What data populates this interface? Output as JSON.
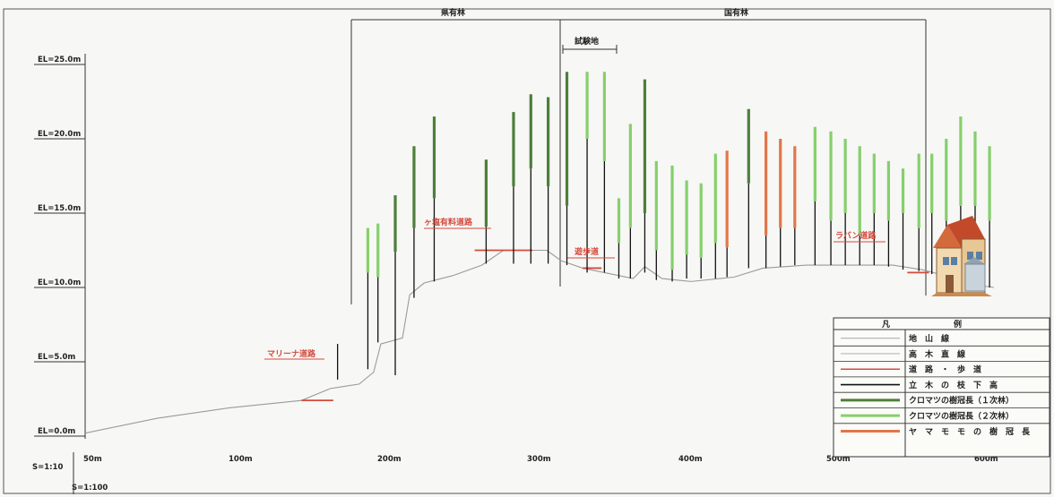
{
  "page": {
    "background": "#f7f7f5",
    "frame_color": "#555555"
  },
  "chart_data": {
    "type": "cross-section",
    "y_axis": {
      "ticks": [
        "EL=25.0m",
        "EL=20.0m",
        "EL=15.0m",
        "EL=10.0m",
        "EL=5.0m",
        "EL=0.0m"
      ],
      "ylim": [
        0,
        25
      ]
    },
    "x_axis": {
      "ticks": [
        "50m",
        "100m",
        "200m",
        "300m",
        "400m",
        "500m",
        "600m"
      ],
      "xlim": [
        0,
        640
      ]
    },
    "scale_labels": [
      "S=1:10",
      "S=1:100"
    ],
    "regions": [
      {
        "label": "県有林"
      },
      {
        "label": "国有林"
      },
      {
        "label": "試験地"
      }
    ],
    "road_labels": [
      "マリーナ道路",
      "ヶ塩有料道路",
      "遊歩道",
      "ラバン道路"
    ],
    "terrain": [
      [
        0,
        0.2
      ],
      [
        50,
        1.2
      ],
      [
        100,
        1.9
      ],
      [
        150,
        2.4
      ],
      [
        170,
        3.2
      ],
      [
        190,
        3.5
      ],
      [
        200,
        4.3
      ],
      [
        205,
        6.2
      ],
      [
        220,
        6.6
      ],
      [
        225,
        9.5
      ],
      [
        235,
        10.3
      ],
      [
        255,
        10.8
      ],
      [
        275,
        11.5
      ],
      [
        290,
        12.5
      ],
      [
        320,
        12.5
      ],
      [
        330,
        11.8
      ],
      [
        345,
        11.3
      ],
      [
        360,
        11.0
      ],
      [
        380,
        10.6
      ],
      [
        388,
        11.4
      ],
      [
        400,
        10.6
      ],
      [
        420,
        10.4
      ],
      [
        440,
        10.6
      ],
      [
        450,
        10.7
      ],
      [
        470,
        11.3
      ],
      [
        500,
        11.5
      ],
      [
        530,
        11.5
      ],
      [
        545,
        11.5
      ],
      [
        560,
        11.5
      ],
      [
        580,
        11.2
      ],
      [
        600,
        10.7
      ],
      [
        615,
        10.2
      ],
      [
        630,
        10.0
      ]
    ],
    "roads": [
      [
        150,
        2.4,
        172,
        2.4
      ],
      [
        270,
        12.5,
        310,
        12.5
      ],
      [
        345,
        11.3,
        358,
        11.3
      ],
      [
        570,
        11.0,
        585,
        11.0
      ]
    ],
    "trees": [
      {
        "x": 175,
        "base": 3.8,
        "top": 6.2,
        "crown": "green2",
        "crown_h": 0.0
      },
      {
        "x": 196,
        "base": 4.5,
        "top": 14.0,
        "crown": "green2",
        "crown_h": 3.0
      },
      {
        "x": 203,
        "base": 6.3,
        "top": 14.3,
        "crown": "green2",
        "crown_h": 3.6
      },
      {
        "x": 215,
        "base": 4.1,
        "top": 16.2,
        "crown": "green1",
        "crown_h": 3.8
      },
      {
        "x": 228,
        "base": 9.3,
        "top": 19.5,
        "crown": "green1",
        "crown_h": 5.5
      },
      {
        "x": 242,
        "base": 10.4,
        "top": 21.5,
        "crown": "green1",
        "crown_h": 5.5
      },
      {
        "x": 278,
        "base": 11.6,
        "top": 18.6,
        "crown": "green1",
        "crown_h": 4.5
      },
      {
        "x": 297,
        "base": 11.6,
        "top": 21.8,
        "crown": "green1",
        "crown_h": 5.0
      },
      {
        "x": 309,
        "base": 11.6,
        "top": 23.0,
        "crown": "green1",
        "crown_h": 5.0
      },
      {
        "x": 321,
        "base": 11.6,
        "top": 22.8,
        "crown": "green1",
        "crown_h": 6.0
      },
      {
        "x": 334,
        "base": 11.5,
        "top": 24.5,
        "crown": "green1",
        "crown_h": 9.0
      },
      {
        "x": 348,
        "base": 11.0,
        "top": 24.5,
        "crown": "green2",
        "crown_h": 4.5
      },
      {
        "x": 360,
        "base": 11.0,
        "top": 24.5,
        "crown": "green2",
        "crown_h": 6.0
      },
      {
        "x": 370,
        "base": 10.6,
        "top": 16.0,
        "crown": "green2",
        "crown_h": 3.0
      },
      {
        "x": 378,
        "base": 10.6,
        "top": 21.0,
        "crown": "green2",
        "crown_h": 7.0
      },
      {
        "x": 388,
        "base": 11.0,
        "top": 24.0,
        "crown": "green1",
        "crown_h": 9.0
      },
      {
        "x": 396,
        "base": 10.5,
        "top": 18.5,
        "crown": "green2",
        "crown_h": 6.0
      },
      {
        "x": 407,
        "base": 10.4,
        "top": 18.2,
        "crown": "green2",
        "crown_h": 7.0
      },
      {
        "x": 417,
        "base": 10.6,
        "top": 17.2,
        "crown": "green2",
        "crown_h": 5.0
      },
      {
        "x": 427,
        "base": 10.6,
        "top": 17.0,
        "crown": "green2",
        "crown_h": 5.0
      },
      {
        "x": 437,
        "base": 10.6,
        "top": 19.0,
        "crown": "green2",
        "crown_h": 6.0
      },
      {
        "x": 445,
        "base": 10.7,
        "top": 19.2,
        "crown": "orange",
        "crown_h": 6.5
      },
      {
        "x": 460,
        "base": 11.3,
        "top": 22.0,
        "crown": "green1",
        "crown_h": 5.0
      },
      {
        "x": 472,
        "base": 11.3,
        "top": 20.5,
        "crown": "orange",
        "crown_h": 7.0
      },
      {
        "x": 482,
        "base": 11.4,
        "top": 20.0,
        "crown": "orange",
        "crown_h": 6.0
      },
      {
        "x": 492,
        "base": 11.5,
        "top": 19.5,
        "crown": "orange",
        "crown_h": 5.5
      },
      {
        "x": 506,
        "base": 11.5,
        "top": 20.8,
        "crown": "green2",
        "crown_h": 5.0
      },
      {
        "x": 517,
        "base": 11.5,
        "top": 20.5,
        "crown": "green2",
        "crown_h": 6.0
      },
      {
        "x": 527,
        "base": 11.5,
        "top": 20.0,
        "crown": "green2",
        "crown_h": 5.0
      },
      {
        "x": 537,
        "base": 11.5,
        "top": 19.5,
        "crown": "green2",
        "crown_h": 6.0
      },
      {
        "x": 547,
        "base": 11.5,
        "top": 19.0,
        "crown": "green2",
        "crown_h": 4.0
      },
      {
        "x": 557,
        "base": 11.4,
        "top": 18.5,
        "crown": "green2",
        "crown_h": 4.0
      },
      {
        "x": 567,
        "base": 11.2,
        "top": 18.0,
        "crown": "green2",
        "crown_h": 3.0
      },
      {
        "x": 578,
        "base": 11.1,
        "top": 19.0,
        "crown": "green2",
        "crown_h": 5.0
      },
      {
        "x": 587,
        "base": 10.9,
        "top": 19.0,
        "crown": "green2",
        "crown_h": 4.0
      },
      {
        "x": 597,
        "base": 10.8,
        "top": 20.0,
        "crown": "green2",
        "crown_h": 5.5
      },
      {
        "x": 607,
        "base": 10.5,
        "top": 21.5,
        "crown": "green2",
        "crown_h": 6.0
      },
      {
        "x": 617,
        "base": 10.2,
        "top": 20.5,
        "crown": "green2",
        "crown_h": 5.0
      },
      {
        "x": 627,
        "base": 10.0,
        "top": 19.5,
        "crown": "green2",
        "crown_h": 5.0
      }
    ]
  },
  "legend": {
    "header": [
      "凡",
      "例"
    ],
    "items": [
      {
        "label": "地　山　線",
        "color": "#b7b7b7",
        "width": 1.2
      },
      {
        "label": "高　木　直　線",
        "color": "#b7b7b7",
        "width": 1.2
      },
      {
        "label": "道　路　・　歩　道",
        "color": "#d44a3c",
        "width": 1.6
      },
      {
        "label": "立　木　の　枝　下　高",
        "color": "#111111",
        "width": 1.6
      },
      {
        "label": "クロマツの樹冠長（１次林）",
        "color": "#4e7f3a",
        "width": 3.0
      },
      {
        "label": "クロマツの樹冠長（２次林）",
        "color": "#86cf6c",
        "width": 3.0
      },
      {
        "label": "ヤ　マ　モ　モ　の　樹　冠　長",
        "color": "#e2764b",
        "width": 3.0
      }
    ]
  },
  "colors": {
    "ground": "#9a9a9a",
    "road": "#d44a3c",
    "trunk": "#111111",
    "green1": "#4e7f3a",
    "green2": "#86cf6c",
    "orange": "#e2764b"
  },
  "icons": [
    "house-icon"
  ]
}
